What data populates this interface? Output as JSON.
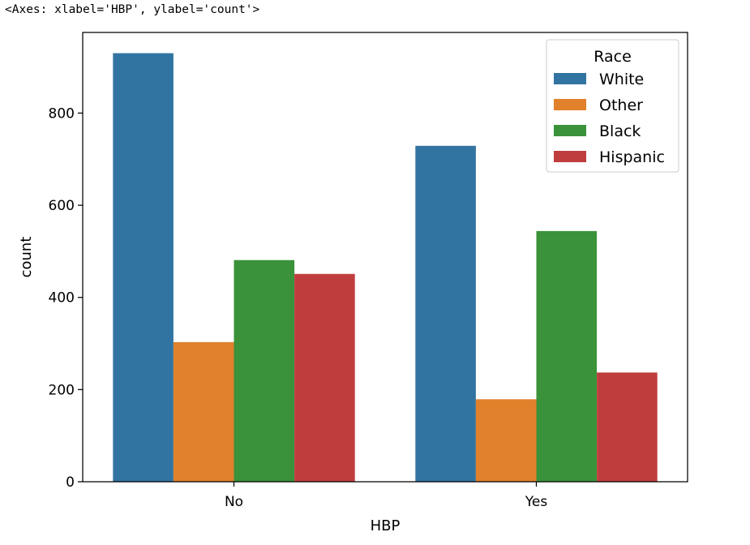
{
  "output_repr": "<Axes: xlabel='HBP', ylabel='count'>",
  "chart_data": {
    "type": "bar",
    "xlabel": "HBP",
    "ylabel": "count",
    "categories": [
      "No",
      "Yes"
    ],
    "ylim": [
      0,
      975
    ],
    "yticks": [
      0,
      200,
      400,
      600,
      800
    ],
    "legend": {
      "title": "Race",
      "placement": "top-right"
    },
    "series": [
      {
        "name": "White",
        "color": "#3274a1",
        "values": [
          930,
          729
        ]
      },
      {
        "name": "Other",
        "color": "#e1812c",
        "values": [
          303,
          179
        ]
      },
      {
        "name": "Black",
        "color": "#3a923a",
        "values": [
          481,
          544
        ]
      },
      {
        "name": "Hispanic",
        "color": "#c03d3e",
        "values": [
          451,
          237
        ]
      }
    ],
    "grid": false
  }
}
